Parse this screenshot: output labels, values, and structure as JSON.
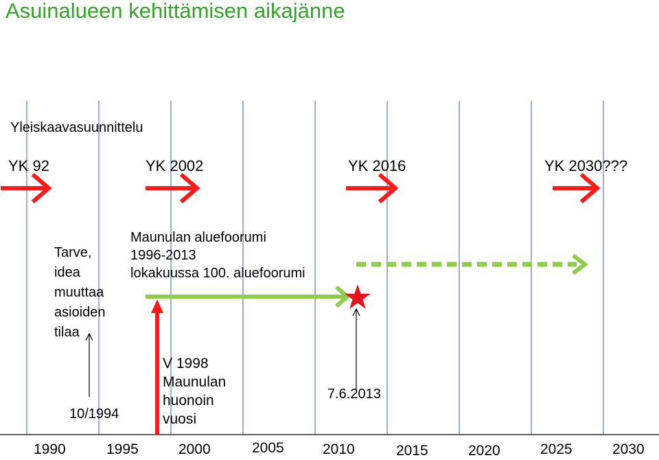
{
  "title": "Asuinalueen kehittämisen aikajänne",
  "section_label": "Yleiskaavasuunnittelu",
  "milestones": [
    {
      "label": "YK 92",
      "year": 1992
    },
    {
      "label": "YK 2002",
      "year": 2002
    },
    {
      "label": "YK 2016",
      "year": 2016
    },
    {
      "label": "YK 2030???",
      "year": 2030
    }
  ],
  "need_text": "Tarve,\nidea\nmuuttaa\nasioiden\ntilaa",
  "forum_text": "Maunulan aluefoorumi\n1996-2013\nlokakuussa 100. aluefoorumi",
  "year_1998_text": "V 1998\nMaunulan\nhuonoin\nvuosi",
  "date_1994": "10/1994",
  "date_2013": "7.6.2013",
  "timeline_years": [
    "1990",
    "1995",
    "2000",
    "2005",
    "2010",
    "2015",
    "2020",
    "2025",
    "2030"
  ],
  "colors": {
    "title": "#33a329",
    "arrow_red": "#ff1a1a",
    "arrow_green": "#8fcc4a",
    "star": "#e8131c",
    "gridline": "#3a5fa8"
  },
  "icons": {
    "event_marker": "star-icon"
  }
}
